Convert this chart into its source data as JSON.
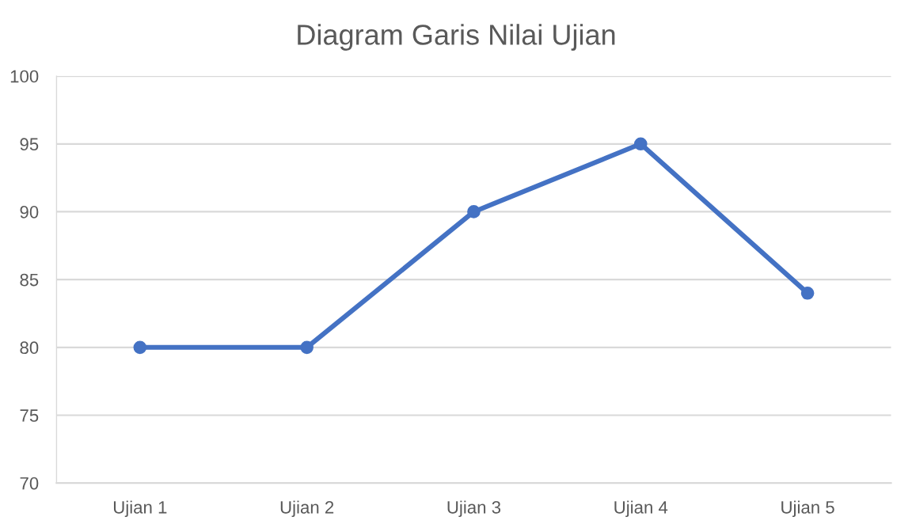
{
  "chart_data": {
    "type": "line",
    "title": "Diagram Garis Nilai Ujian",
    "categories": [
      "Ujian 1",
      "Ujian 2",
      "Ujian 3",
      "Ujian 4",
      "Ujian 5"
    ],
    "series": [
      {
        "color": "#4472c4",
        "values": [
          80,
          80,
          90,
          95,
          84
        ]
      }
    ],
    "ylim": [
      70,
      100
    ],
    "yticks": [
      70,
      75,
      80,
      85,
      90,
      95,
      100
    ],
    "grid": "y",
    "marker": "circle",
    "line_style": "solid"
  }
}
